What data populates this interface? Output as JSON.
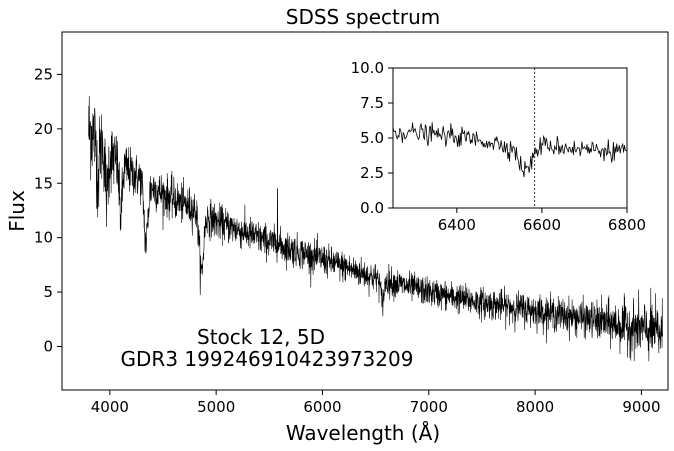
{
  "chart_data": {
    "main": {
      "type": "line",
      "title": "SDSS spectrum",
      "xlabel": "Wavelength (Å)",
      "ylabel": "Flux",
      "xlim": [
        3550,
        9250
      ],
      "ylim": [
        -4.0,
        28.9
      ],
      "xticks": [
        4000,
        5000,
        6000,
        7000,
        8000,
        9000
      ],
      "xtick_labels": [
        "4000",
        "5000",
        "6000",
        "7000",
        "8000",
        "9000"
      ],
      "yticks": [
        0,
        5,
        10,
        15,
        20,
        25
      ],
      "ytick_labels": [
        "0",
        "5",
        "10",
        "15",
        "20",
        "25"
      ],
      "x_range": [
        3800,
        9200
      ],
      "continuum": [
        [
          3800,
          20.0
        ],
        [
          4000,
          17.5
        ],
        [
          4200,
          16.0
        ],
        [
          4500,
          14.0
        ],
        [
          4800,
          12.6
        ],
        [
          5000,
          11.5
        ],
        [
          5500,
          9.6
        ],
        [
          6000,
          8.0
        ],
        [
          6500,
          6.3
        ],
        [
          7000,
          5.0
        ],
        [
          7500,
          4.0
        ],
        [
          8000,
          3.3
        ],
        [
          8500,
          2.5
        ],
        [
          9000,
          1.6
        ],
        [
          9200,
          1.2
        ]
      ],
      "absorption_lines": [
        {
          "center": 3889,
          "depth": 3.5,
          "width": 10
        },
        {
          "center": 3970,
          "depth": 4.0,
          "width": 12
        },
        {
          "center": 4102,
          "depth": 4.5,
          "width": 15
        },
        {
          "center": 4340,
          "depth": 5.5,
          "width": 18
        },
        {
          "center": 4861,
          "depth": 5.5,
          "width": 20
        },
        {
          "center": 6563,
          "depth": 2.0,
          "width": 15
        }
      ],
      "spike": {
        "x": 5577,
        "y": 14.5
      },
      "noise": [
        [
          3800,
          2.8
        ],
        [
          4200,
          1.3
        ],
        [
          5000,
          1.0
        ],
        [
          7000,
          0.8
        ],
        [
          8500,
          1.0
        ],
        [
          9200,
          1.8
        ]
      ],
      "grid": false,
      "annotation_lines": [
        "Stock 12, 5D",
        "GDR3 199246910423973209"
      ],
      "line_color": "#000000"
    },
    "inset": {
      "type": "line",
      "xlim": [
        6250,
        6800
      ],
      "ylim": [
        0.0,
        10.0
      ],
      "xticks": [
        6400,
        6600,
        6800
      ],
      "xtick_labels": [
        "6400",
        "6600",
        "6800"
      ],
      "yticks": [
        0.0,
        2.5,
        5.0,
        7.5,
        10.0
      ],
      "ytick_labels": [
        "0.0",
        "2.5",
        "5.0",
        "7.5",
        "10.0"
      ],
      "continuum": [
        [
          6250,
          5.5
        ],
        [
          6400,
          5.1
        ],
        [
          6500,
          4.6
        ],
        [
          6550,
          4.2
        ],
        [
          6600,
          4.5
        ],
        [
          6700,
          4.2
        ],
        [
          6800,
          4.1
        ]
      ],
      "absorption_dip": {
        "center": 6562,
        "depth": 1.6,
        "width": 14
      },
      "noise_amplitude": 0.35,
      "vline_x": 6583,
      "line_color": "#000000"
    }
  }
}
